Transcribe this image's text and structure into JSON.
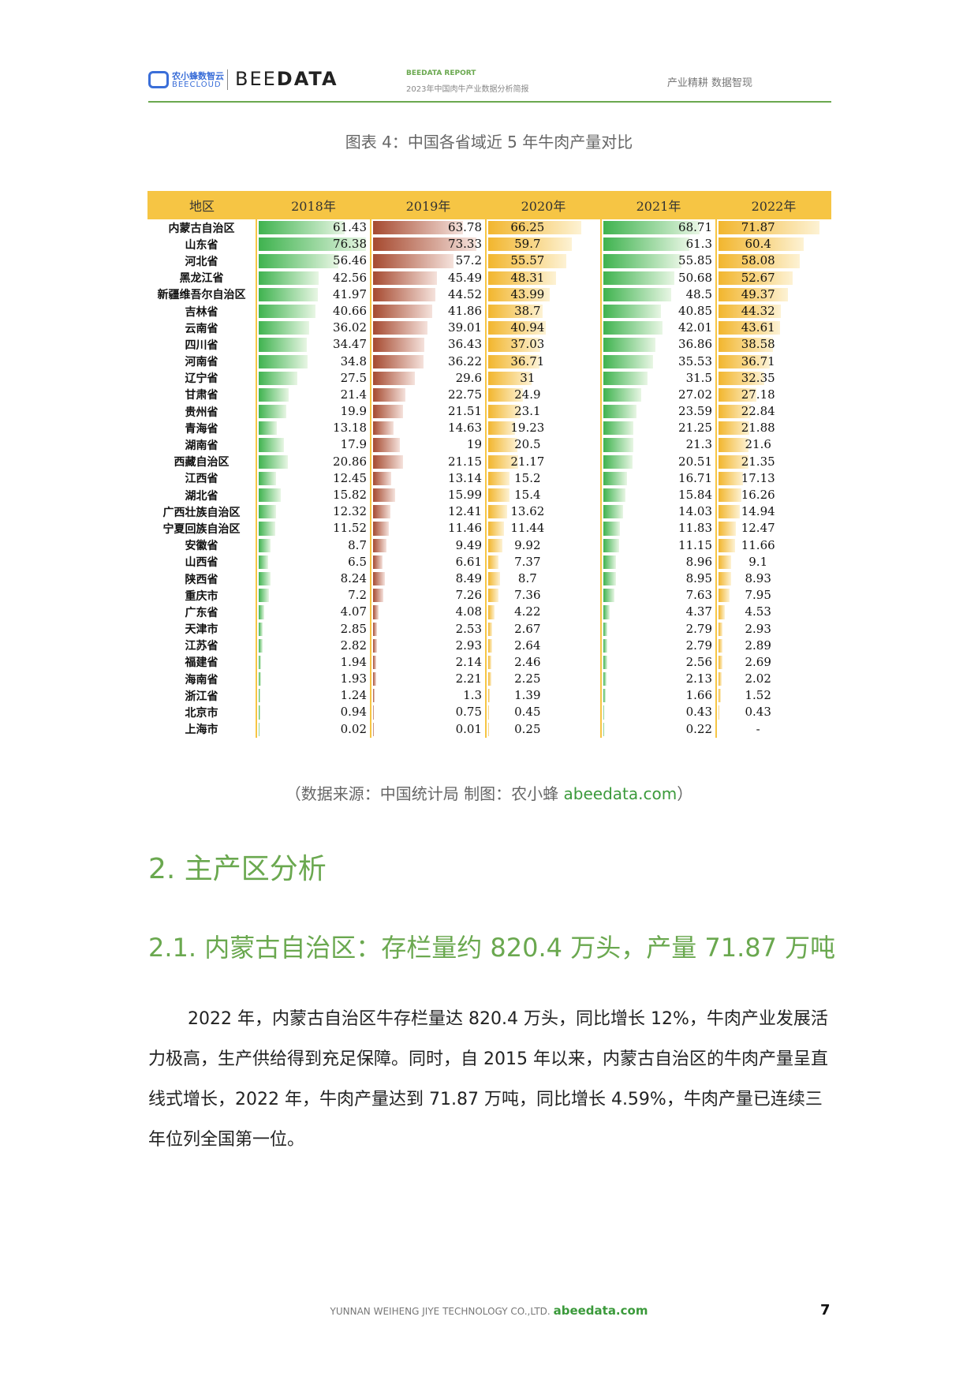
{
  "header": {
    "logo_cn": "农小蜂数智云",
    "logo_en": "BEECLOUD",
    "brand_light": "BEE",
    "brand_bold": "DATA",
    "report_title": "BEEDATA REPORT",
    "report_subtitle": "2023年中国肉牛产业数据分析简报",
    "slogan": "产业精耕  数据智现"
  },
  "figure": {
    "caption": "图表 4：中国各省域近 5 年牛肉产量对比",
    "source_prefix": "（数据来源：中国统计局    制图：农小蜂 ",
    "source_link": "abeedata.com",
    "source_suffix": "）"
  },
  "chart_data": {
    "type": "table",
    "columns": [
      "地区",
      "2018年",
      "2019年",
      "2020年",
      "2021年",
      "2022年"
    ],
    "colors": {
      "2018": "#3fb34f",
      "2019": "#a64a30",
      "2020": "#f2b62e",
      "2021": "#3fb34f",
      "2022": "#f2b62e",
      "header": "#f6c544"
    },
    "rows": [
      {
        "region": "内蒙古自治区",
        "values": [
          "61.43",
          "63.78",
          "66.25",
          "68.71",
          "71.87"
        ]
      },
      {
        "region": "山东省",
        "values": [
          "76.38",
          "73.33",
          "59.7",
          "61.3",
          "60.4"
        ]
      },
      {
        "region": "河北省",
        "values": [
          "56.46",
          "57.2",
          "55.57",
          "55.85",
          "58.08"
        ]
      },
      {
        "region": "黑龙江省",
        "values": [
          "42.56",
          "45.49",
          "48.31",
          "50.68",
          "52.67"
        ]
      },
      {
        "region": "新疆维吾尔自治区",
        "values": [
          "41.97",
          "44.52",
          "43.99",
          "48.5",
          "49.37"
        ]
      },
      {
        "region": "吉林省",
        "values": [
          "40.66",
          "41.86",
          "38.7",
          "40.85",
          "44.32"
        ]
      },
      {
        "region": "云南省",
        "values": [
          "36.02",
          "39.01",
          "40.94",
          "42.01",
          "43.61"
        ]
      },
      {
        "region": "四川省",
        "values": [
          "34.47",
          "36.43",
          "37.03",
          "36.86",
          "38.58"
        ]
      },
      {
        "region": "河南省",
        "values": [
          "34.8",
          "36.22",
          "36.71",
          "35.53",
          "36.71"
        ]
      },
      {
        "region": "辽宁省",
        "values": [
          "27.5",
          "29.6",
          "31",
          "31.5",
          "32.35"
        ]
      },
      {
        "region": "甘肃省",
        "values": [
          "21.4",
          "22.75",
          "24.9",
          "27.02",
          "27.18"
        ]
      },
      {
        "region": "贵州省",
        "values": [
          "19.9",
          "21.51",
          "23.1",
          "23.59",
          "22.84"
        ]
      },
      {
        "region": "青海省",
        "values": [
          "13.18",
          "14.63",
          "19.23",
          "21.25",
          "21.88"
        ]
      },
      {
        "region": "湖南省",
        "values": [
          "17.9",
          "19",
          "20.5",
          "21.3",
          "21.6"
        ]
      },
      {
        "region": "西藏自治区",
        "values": [
          "20.86",
          "21.15",
          "21.17",
          "20.51",
          "21.35"
        ]
      },
      {
        "region": "江西省",
        "values": [
          "12.45",
          "13.14",
          "15.2",
          "16.71",
          "17.13"
        ]
      },
      {
        "region": "湖北省",
        "values": [
          "15.82",
          "15.99",
          "15.4",
          "15.84",
          "16.26"
        ]
      },
      {
        "region": "广西壮族自治区",
        "values": [
          "12.32",
          "12.41",
          "13.62",
          "14.03",
          "14.94"
        ]
      },
      {
        "region": "宁夏回族自治区",
        "values": [
          "11.52",
          "11.46",
          "11.44",
          "11.83",
          "12.47"
        ]
      },
      {
        "region": "安徽省",
        "values": [
          "8.7",
          "9.49",
          "9.92",
          "11.15",
          "11.66"
        ]
      },
      {
        "region": "山西省",
        "values": [
          "6.5",
          "6.61",
          "7.37",
          "8.96",
          "9.1"
        ]
      },
      {
        "region": "陕西省",
        "values": [
          "8.24",
          "8.49",
          "8.7",
          "8.95",
          "8.93"
        ]
      },
      {
        "region": "重庆市",
        "values": [
          "7.2",
          "7.26",
          "7.36",
          "7.63",
          "7.95"
        ]
      },
      {
        "region": "广东省",
        "values": [
          "4.07",
          "4.08",
          "4.22",
          "4.37",
          "4.53"
        ]
      },
      {
        "region": "天津市",
        "values": [
          "2.85",
          "2.53",
          "2.67",
          "2.79",
          "2.93"
        ]
      },
      {
        "region": "江苏省",
        "values": [
          "2.82",
          "2.93",
          "2.64",
          "2.79",
          "2.89"
        ]
      },
      {
        "region": "福建省",
        "values": [
          "1.94",
          "2.14",
          "2.46",
          "2.56",
          "2.69"
        ]
      },
      {
        "region": "海南省",
        "values": [
          "1.93",
          "2.21",
          "2.25",
          "2.13",
          "2.02"
        ]
      },
      {
        "region": "浙江省",
        "values": [
          "1.24",
          "1.3",
          "1.39",
          "1.66",
          "1.52"
        ]
      },
      {
        "region": "北京市",
        "values": [
          "0.94",
          "0.75",
          "0.45",
          "0.43",
          "0.43"
        ]
      },
      {
        "region": "上海市",
        "values": [
          "0.02",
          "0.01",
          "0.25",
          "0.22",
          "-"
        ]
      }
    ]
  },
  "section": {
    "h1": "2. 主产区分析",
    "h2": "2.1. 内蒙古自治区：存栏量约 820.4 万头，产量 71.87 万吨",
    "paragraph": "2022 年，内蒙古自治区牛存栏量达 820.4 万头，同比增长 12%，牛肉产业发展活力极高，生产供给得到充足保障。同时，自 2015 年以来，内蒙古自治区的牛肉产量呈直线式增长，2022 年，牛肉产量达到 71.87 万吨，同比增长 4.59%，牛肉产量已连续三年位列全国第一位。"
  },
  "footer": {
    "company": "YUNNAN WEIHENG JIYE TECHNOLOGY CO.,LTD.",
    "link": "abeedata.com",
    "page": "7"
  }
}
